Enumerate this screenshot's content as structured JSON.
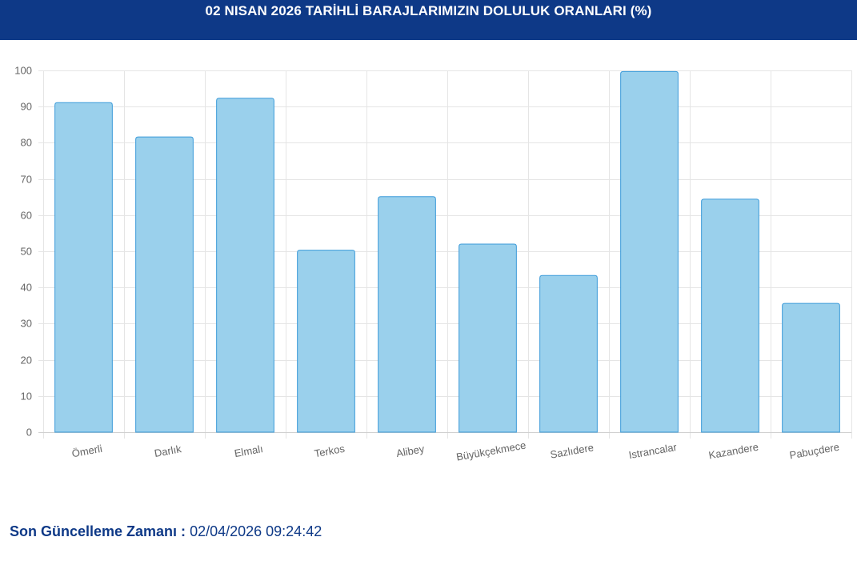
{
  "header": {
    "title": "02 NISAN 2026 TARİHLİ BARAJLARIMIZIN DOLULUK ORANLARI (%)"
  },
  "footer": {
    "label": "Son Güncelleme Zamanı : ",
    "value": "02/04/2026 09:24:42"
  },
  "colors": {
    "header_bg": "#0e3987",
    "bar_fill": "#9ad0ec",
    "bar_border": "#3a9ad9",
    "grid": "#e5e5e5"
  },
  "chart_data": {
    "type": "bar",
    "categories": [
      "Ömerli",
      "Darlık",
      "Elmalı",
      "Terkos",
      "Alibey",
      "Büyükçekmece",
      "Sazlıdere",
      "Istrancalar",
      "Kazandere",
      "Pabuçdere"
    ],
    "values": [
      91.1,
      81.6,
      92.3,
      50.3,
      65.1,
      52.0,
      43.3,
      99.7,
      64.4,
      35.6
    ],
    "ylim": [
      0,
      100
    ],
    "yticks": [
      0,
      10,
      20,
      30,
      40,
      50,
      60,
      70,
      80,
      90,
      100
    ],
    "grid": true,
    "legend": "none"
  }
}
